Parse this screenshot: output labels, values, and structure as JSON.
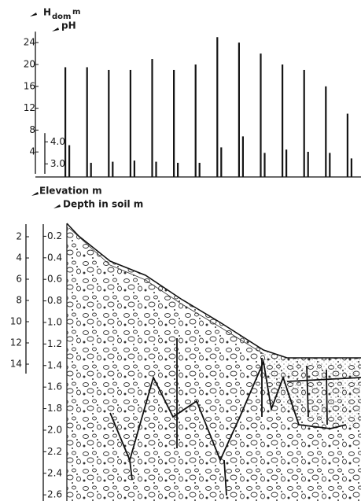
{
  "chart_data": [
    {
      "type": "bar",
      "ylabel": "H",
      "ylabel_sub": "dom",
      "ylabel_unit": "m",
      "y2label": "pH",
      "series": [
        {
          "color": "#151515",
          "values": [
            19.5,
            19.5,
            19,
            19,
            21,
            19,
            20,
            25,
            24,
            22,
            20,
            19,
            16,
            11
          ]
        },
        {
          "color": "#151515",
          "axis": "y2",
          "values": [
            3.85,
            3.05,
            3.1,
            3.15,
            3.1,
            3.05,
            3.05,
            3.75,
            4.25,
            3.5,
            3.65,
            3.55,
            3.5,
            3.25
          ]
        }
      ],
      "ylim": [
        0,
        26
      ],
      "yticks": [
        4,
        8,
        12,
        16,
        20,
        24
      ],
      "y2lim": [
        2.55,
        4.4
      ],
      "y2ticks": [
        {
          "value": 3,
          "label": "3.0"
        },
        {
          "value": 4,
          "label": "4.0"
        }
      ]
    },
    {
      "type": "profile",
      "ylabel": "Elevation m",
      "y2label": "Depth in soil m",
      "ylim": [
        0,
        15
      ],
      "yticks": [
        2,
        4,
        6,
        8,
        10,
        12,
        14
      ],
      "y2lim": [
        0,
        2.65
      ],
      "y2ticks": [
        0.2,
        0.4,
        0.6,
        0.8,
        {
          "value": 1,
          "label": "1.0"
        },
        1.2,
        1.4,
        1.6,
        1.8,
        {
          "value": 2,
          "label": "2.0"
        },
        2.2,
        2.4,
        2.6
      ]
    }
  ]
}
